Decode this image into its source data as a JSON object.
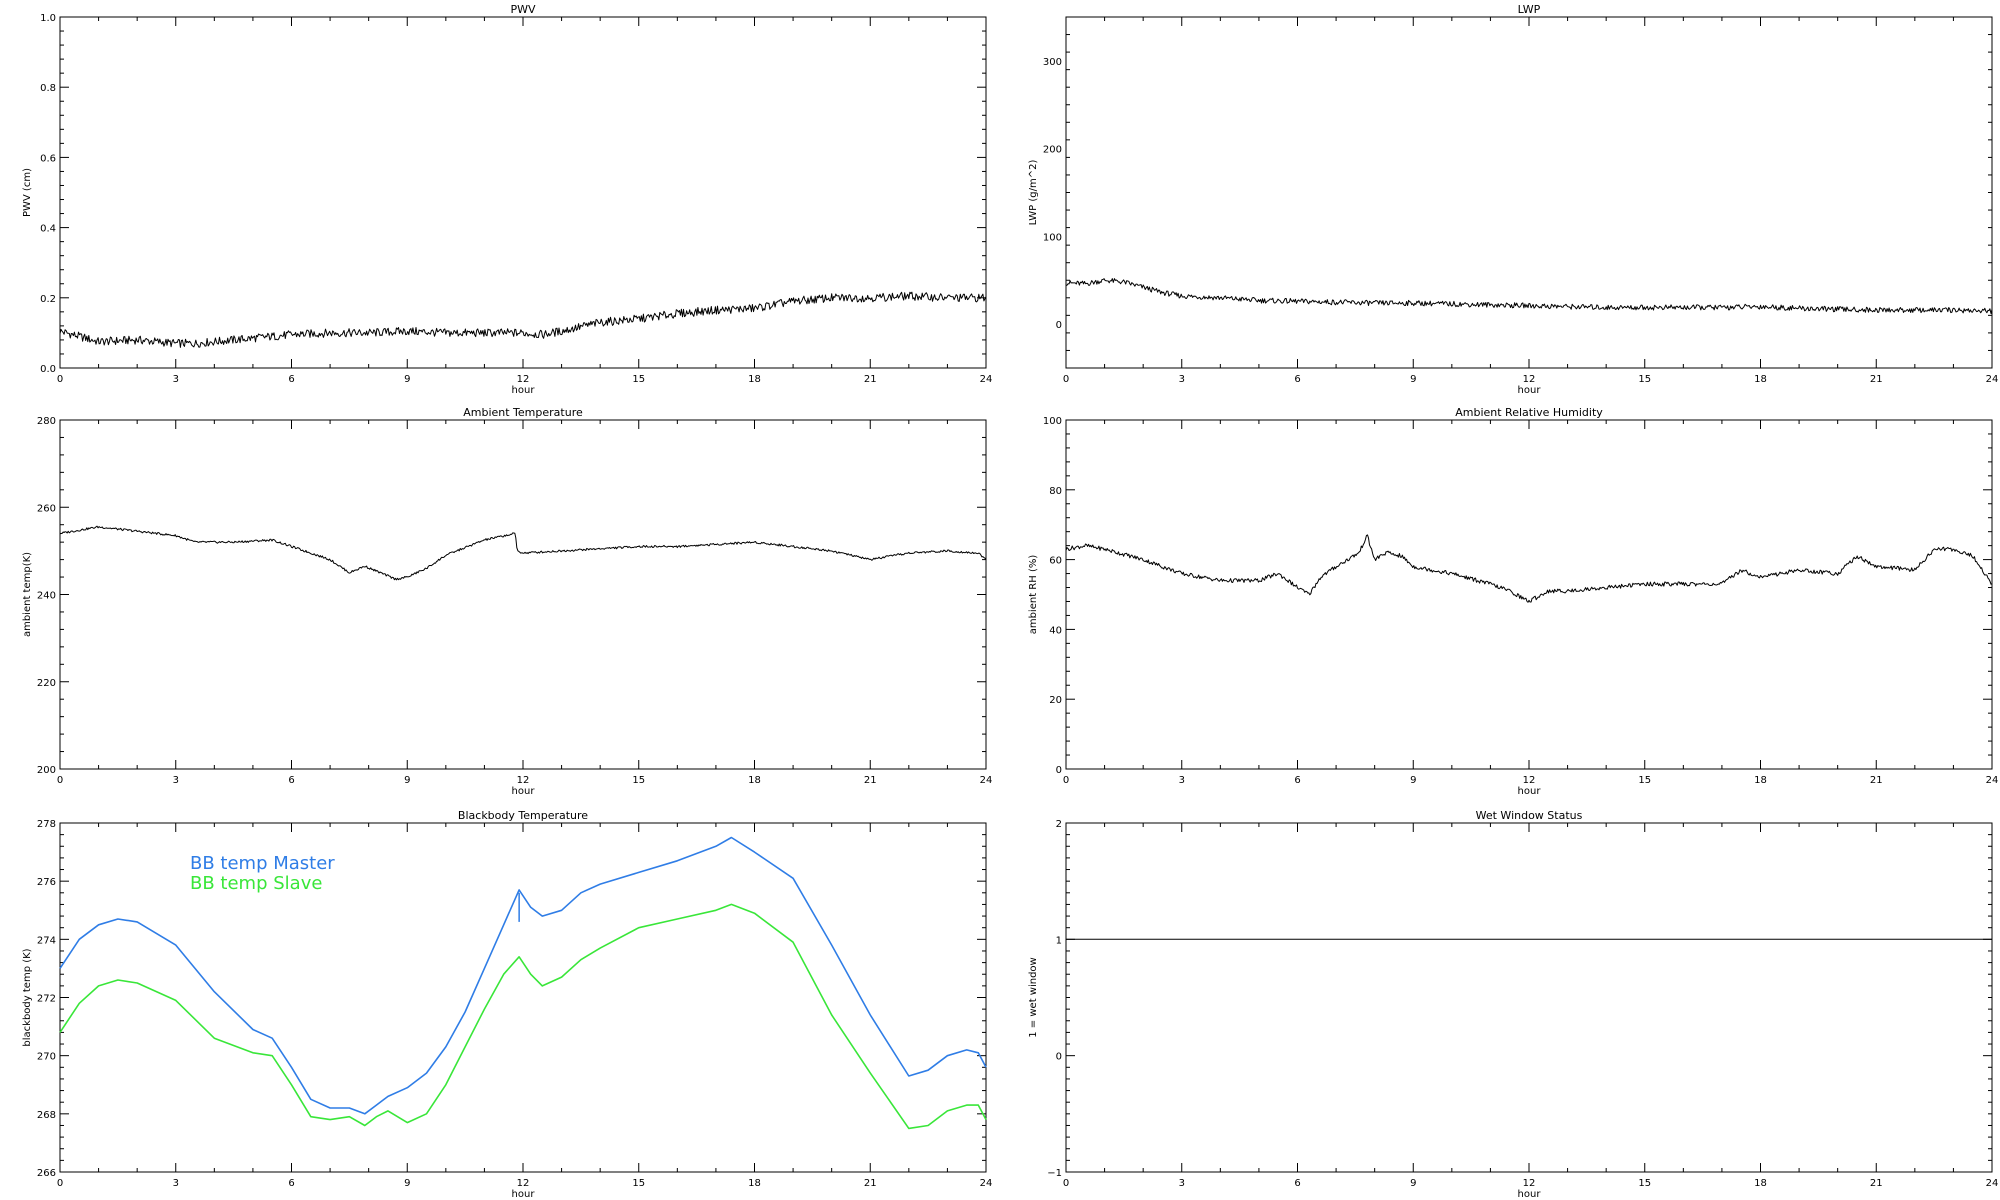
{
  "chart_data": [
    {
      "type": "line",
      "title": "PWV",
      "xlabel": "hour",
      "ylabel": "PWV (cm)",
      "xlim": [
        0,
        24
      ],
      "ylim": [
        0,
        1.0
      ],
      "x_ticks": [
        0,
        3,
        6,
        9,
        12,
        15,
        18,
        21,
        24
      ],
      "y_ticks": [
        0.0,
        0.2,
        0.4,
        0.6,
        0.8,
        1.0
      ],
      "y_tick_labels": [
        "0.0",
        "0.2",
        "0.4",
        "0.6",
        "0.8",
        "1.0"
      ],
      "series": [
        {
          "color": "#000000",
          "x": [
            0,
            0.5,
            1,
            2,
            3,
            3.5,
            4,
            5,
            6,
            7,
            8,
            9,
            10,
            11,
            12,
            12.5,
            13,
            14,
            15,
            16,
            17,
            18,
            19,
            20,
            21,
            22,
            23,
            24
          ],
          "y": [
            0.105,
            0.09,
            0.075,
            0.08,
            0.07,
            0.07,
            0.075,
            0.085,
            0.095,
            0.1,
            0.1,
            0.105,
            0.1,
            0.1,
            0.1,
            0.095,
            0.105,
            0.13,
            0.14,
            0.155,
            0.165,
            0.17,
            0.19,
            0.2,
            0.2,
            0.205,
            0.2,
            0.2
          ],
          "noise": 0.012
        }
      ]
    },
    {
      "type": "line",
      "title": "LWP",
      "xlabel": "hour",
      "ylabel": "LWP (g/m^2)",
      "xlim": [
        0,
        24
      ],
      "ylim": [
        -50,
        350
      ],
      "x_ticks": [
        0,
        3,
        6,
        9,
        12,
        15,
        18,
        21,
        24
      ],
      "y_ticks": [
        0,
        100,
        200,
        300
      ],
      "y_tick_labels": [
        "0",
        "100",
        "200",
        "300"
      ],
      "series": [
        {
          "color": "#000000",
          "x": [
            0,
            0.5,
            1,
            1.5,
            2,
            2.5,
            3,
            4,
            5,
            6,
            7,
            8,
            9,
            10,
            11,
            12,
            13,
            14,
            15,
            16,
            17,
            18,
            19,
            20,
            21,
            22,
            23,
            24
          ],
          "y": [
            47,
            46,
            50,
            48,
            42,
            36,
            32,
            30,
            27,
            26,
            25,
            24,
            24,
            23,
            22,
            21,
            20,
            19,
            19,
            19,
            19,
            20,
            18,
            17,
            16,
            16,
            16,
            15
          ],
          "noise": 3
        }
      ]
    },
    {
      "type": "line",
      "title": "Ambient Temperature",
      "xlabel": "hour",
      "ylabel": "ambient temp(K)",
      "xlim": [
        0,
        24
      ],
      "ylim": [
        200,
        280
      ],
      "x_ticks": [
        0,
        3,
        6,
        9,
        12,
        15,
        18,
        21,
        24
      ],
      "y_ticks": [
        200,
        220,
        240,
        260,
        280
      ],
      "y_tick_labels": [
        "200",
        "220",
        "240",
        "260",
        "280"
      ],
      "series": [
        {
          "color": "#000000",
          "x": [
            0,
            1,
            2,
            3,
            3.5,
            4.5,
            5.5,
            6,
            7,
            7.5,
            7.9,
            8.3,
            8.7,
            9,
            9.5,
            10,
            11,
            11.8,
            11.85,
            12,
            13,
            14,
            15,
            16,
            17,
            18,
            19,
            20,
            21,
            22,
            23,
            23.8,
            24
          ],
          "y": [
            254,
            255.5,
            254.5,
            253.5,
            252,
            252,
            252.5,
            251,
            248,
            245,
            246.5,
            245,
            243.5,
            244,
            246,
            249,
            252.5,
            254,
            250,
            249.5,
            250,
            250.5,
            251,
            251,
            251.5,
            252,
            251,
            250,
            248,
            249.5,
            250,
            249.5,
            248
          ],
          "noise": 0.25
        }
      ]
    },
    {
      "type": "line",
      "title": "Ambient Relative Humidity",
      "xlabel": "hour",
      "ylabel": "ambient RH (%)",
      "xlim": [
        0,
        24
      ],
      "ylim": [
        0,
        100
      ],
      "x_ticks": [
        0,
        3,
        6,
        9,
        12,
        15,
        18,
        21,
        24
      ],
      "y_ticks": [
        0,
        20,
        40,
        60,
        80,
        100
      ],
      "y_tick_labels": [
        "0",
        "20",
        "40",
        "60",
        "80",
        "100"
      ],
      "series": [
        {
          "color": "#000000",
          "x": [
            0,
            0.5,
            1,
            2,
            3,
            4,
            5,
            5.5,
            6,
            6.3,
            6.6,
            7,
            7.3,
            7.6,
            7.8,
            8,
            8.3,
            8.7,
            9,
            9.5,
            10,
            11,
            11.5,
            12,
            12.5,
            13,
            14,
            15,
            16,
            17,
            17.5,
            18,
            19,
            20,
            20.5,
            21,
            22,
            22.5,
            23,
            23.5,
            24
          ],
          "y": [
            63,
            64,
            63,
            60,
            56,
            54,
            54,
            56,
            52,
            50,
            55,
            58,
            60,
            62,
            67,
            60,
            62,
            61,
            58,
            57,
            56,
            53,
            51,
            48,
            51,
            51,
            52,
            53,
            53,
            53,
            57,
            55,
            57,
            56,
            61,
            58,
            57,
            63,
            63,
            61,
            53
          ],
          "noise": 0.6
        }
      ]
    },
    {
      "type": "line",
      "title": "Blackbody Temperature",
      "xlabel": "hour",
      "ylabel": "blackbody temp (K)",
      "xlim": [
        0,
        24
      ],
      "ylim": [
        266,
        278
      ],
      "x_ticks": [
        0,
        3,
        6,
        9,
        12,
        15,
        18,
        21,
        24
      ],
      "y_ticks": [
        266,
        268,
        270,
        272,
        274,
        276,
        278
      ],
      "y_tick_labels": [
        "266",
        "268",
        "270",
        "272",
        "274",
        "276",
        "278"
      ],
      "legend": [
        {
          "label": "BB temp Master",
          "color": "#2f7de6"
        },
        {
          "label": "BB temp Slave",
          "color": "#39e639"
        }
      ],
      "series": [
        {
          "name": "BB temp Master",
          "color": "#2f7de6",
          "x": [
            0,
            0.5,
            1,
            1.5,
            2,
            3,
            4,
            5,
            5.5,
            6,
            6.5,
            7,
            7.5,
            7.9,
            8.2,
            8.5,
            9,
            9.5,
            10,
            10.5,
            11,
            11.5,
            11.9,
            12.2,
            12.5,
            13,
            13.5,
            14,
            15,
            16,
            17,
            17.4,
            18,
            19,
            20,
            21,
            22,
            22.5,
            23,
            23.5,
            23.8,
            24
          ],
          "y": [
            273,
            274,
            274.5,
            274.7,
            274.6,
            273.8,
            272.2,
            270.9,
            270.6,
            269.6,
            268.5,
            268.2,
            268.2,
            268,
            268.3,
            268.6,
            268.9,
            269.4,
            270.3,
            271.5,
            273,
            274.5,
            275.7,
            275.1,
            274.8,
            275,
            275.6,
            275.9,
            276.3,
            276.7,
            277.2,
            277.5,
            277,
            276.1,
            273.8,
            271.4,
            269.3,
            269.5,
            270,
            270.2,
            270.1,
            269.6
          ]
        },
        {
          "name": "BB temp Slave",
          "color": "#39e639",
          "x": [
            0,
            0.5,
            1,
            1.5,
            2,
            3,
            4,
            5,
            5.5,
            6,
            6.5,
            7,
            7.5,
            7.9,
            8.2,
            8.5,
            9,
            9.5,
            10,
            10.5,
            11,
            11.5,
            11.9,
            12.2,
            12.5,
            13,
            13.5,
            14,
            15,
            16,
            17,
            17.4,
            18,
            19,
            20,
            21,
            22,
            22.5,
            23,
            23.5,
            23.8,
            24
          ],
          "y": [
            270.8,
            271.8,
            272.4,
            272.6,
            272.5,
            271.9,
            270.6,
            270.1,
            270,
            269,
            267.9,
            267.8,
            267.9,
            267.6,
            267.9,
            268.1,
            267.7,
            268,
            269,
            270.3,
            271.6,
            272.8,
            273.4,
            272.8,
            272.4,
            272.7,
            273.3,
            273.7,
            274.4,
            274.7,
            275,
            275.2,
            274.9,
            273.9,
            271.4,
            269.4,
            267.5,
            267.6,
            268.1,
            268.3,
            268.3,
            267.8
          ]
        }
      ],
      "annotation": {
        "x": 11.9,
        "y_from": 275.6,
        "y_to": 274.6,
        "color": "#2f7de6"
      }
    },
    {
      "type": "line",
      "title": "Wet Window Status",
      "xlabel": "hour",
      "ylabel": "1 = wet window",
      "xlim": [
        0,
        24
      ],
      "ylim": [
        -1,
        2
      ],
      "x_ticks": [
        0,
        3,
        6,
        9,
        12,
        15,
        18,
        21,
        24
      ],
      "y_ticks": [
        -1,
        0,
        1,
        2
      ],
      "y_tick_labels": [
        "−1",
        "0",
        "1",
        "2"
      ],
      "series": [
        {
          "color": "#000000",
          "x": [
            0,
            24
          ],
          "y": [
            1,
            1
          ]
        }
      ]
    }
  ]
}
